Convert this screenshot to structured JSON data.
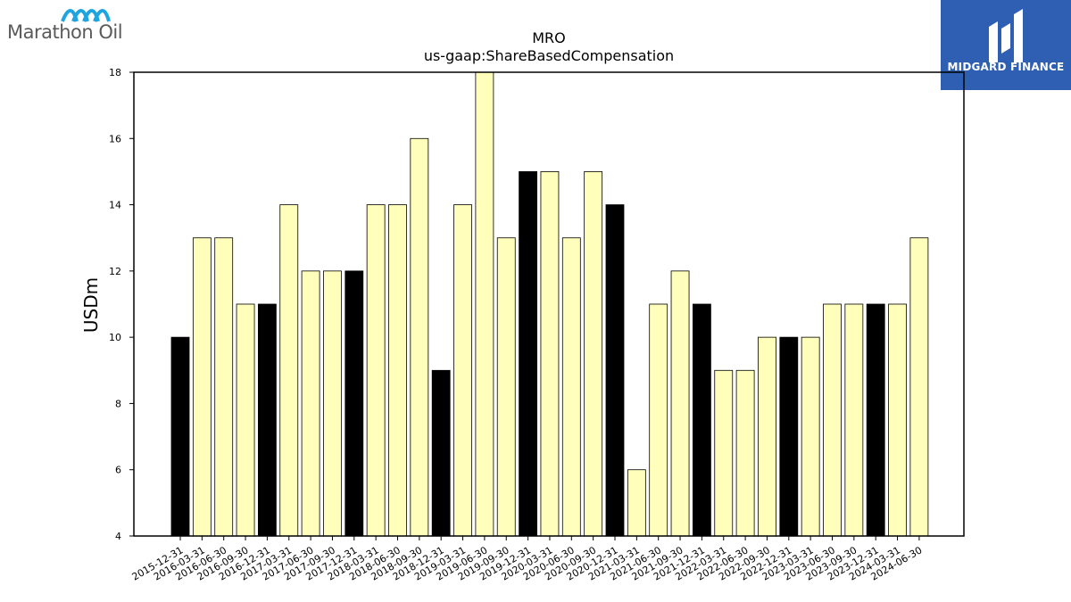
{
  "logos": {
    "left_wordmark": "Marathon Oil",
    "right_wordmark": "MIDGARD FINANCE"
  },
  "colors": {
    "bar_highlight": "#000000",
    "bar_default": "#ffffbb",
    "bar_edge": "#000000",
    "brand_blue": "#2f5fb3",
    "marathon_blue": "#1ea5e0"
  },
  "chart_data": {
    "type": "bar",
    "title": "MRO",
    "subtitle": "us-gaap:ShareBasedCompensation",
    "xlabel": "",
    "ylabel": "USDm",
    "ylim": [
      4,
      18
    ],
    "yticks": [
      4,
      6,
      8,
      10,
      12,
      14,
      16,
      18
    ],
    "grid": false,
    "categories": [
      "2015-12-31",
      "2016-03-31",
      "2016-06-30",
      "2016-09-30",
      "2016-12-31",
      "2017-03-31",
      "2017-06-30",
      "2017-09-30",
      "2017-12-31",
      "2018-03-31",
      "2018-06-30",
      "2018-09-30",
      "2018-12-31",
      "2019-03-31",
      "2019-06-30",
      "2019-09-30",
      "2019-12-31",
      "2020-03-31",
      "2020-06-30",
      "2020-09-30",
      "2020-12-31",
      "2021-03-31",
      "2021-06-30",
      "2021-09-30",
      "2021-12-31",
      "2022-03-31",
      "2022-06-30",
      "2022-09-30",
      "2022-12-31",
      "2023-03-31",
      "2023-06-30",
      "2023-09-30",
      "2023-12-31",
      "2024-03-31",
      "2024-06-30"
    ],
    "values": [
      10,
      13,
      13,
      11,
      11,
      14,
      12,
      12,
      12,
      14,
      14,
      16,
      9,
      14,
      18,
      13,
      15,
      15,
      13,
      15,
      14,
      6,
      11,
      12,
      11,
      9,
      9,
      10,
      10,
      10,
      11,
      11,
      11,
      11,
      13
    ],
    "highlight": [
      true,
      false,
      false,
      false,
      true,
      false,
      false,
      false,
      true,
      false,
      false,
      false,
      true,
      false,
      false,
      false,
      true,
      false,
      false,
      false,
      true,
      false,
      false,
      false,
      true,
      false,
      false,
      false,
      true,
      false,
      false,
      false,
      true,
      false,
      false
    ]
  }
}
